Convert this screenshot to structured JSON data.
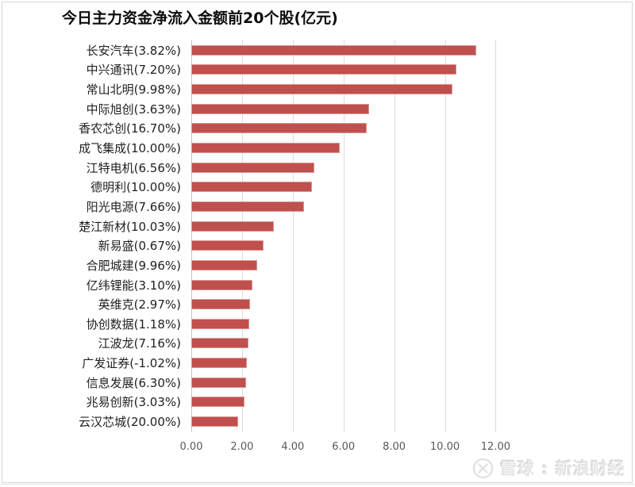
{
  "title": "今日主力资金净流入金额前20个股(亿元)",
  "watermark": {
    "text": "雪球 : 新浪财经",
    "logo": "xueqiu-snowball-logo",
    "color": "#e7e7e7"
  },
  "chart_data": {
    "type": "bar",
    "orientation": "horizontal",
    "title": "今日主力资金净流入金额前20个股(亿元)",
    "unit": "亿元",
    "categories": [
      "长安汽车(3.82%)",
      "中兴通讯(7.20%)",
      "常山北明(9.98%)",
      "中际旭创(3.63%)",
      "香农芯创(16.70%)",
      "成飞集成(10.00%)",
      "江特电机(6.56%)",
      "德明利(10.00%)",
      "阳光电源(7.66%)",
      "楚江新材(10.03%)",
      "新易盛(0.67%)",
      "合肥城建(9.96%)",
      "亿纬锂能(3.10%)",
      "英维克(2.97%)",
      "协创数据(1.18%)",
      "江波龙(7.16%)",
      "广发证券(-1.02%)",
      "信息发展(6.30%)",
      "兆易创新(3.03%)",
      "云汉芯城(20.00%)"
    ],
    "values": [
      11.25,
      10.46,
      10.3,
      7.0,
      6.91,
      5.84,
      4.84,
      4.75,
      4.45,
      3.25,
      2.84,
      2.59,
      2.42,
      2.31,
      2.28,
      2.26,
      2.2,
      2.17,
      2.09,
      1.85
    ],
    "x_ticks": [
      "0.00",
      "2.00",
      "4.00",
      "6.00",
      "8.00",
      "10.00",
      "12.00"
    ],
    "xlim": [
      0,
      12
    ],
    "xlabel": "",
    "ylabel": "",
    "grid": true,
    "legend": false,
    "bar_color": "#c0504d",
    "bar_border_color": "#d99694",
    "gridline_color": "#dcdcdc",
    "axis_line_color": "#c6c6c6",
    "tick_label_color": "#595959",
    "category_label_color": "#212121"
  }
}
